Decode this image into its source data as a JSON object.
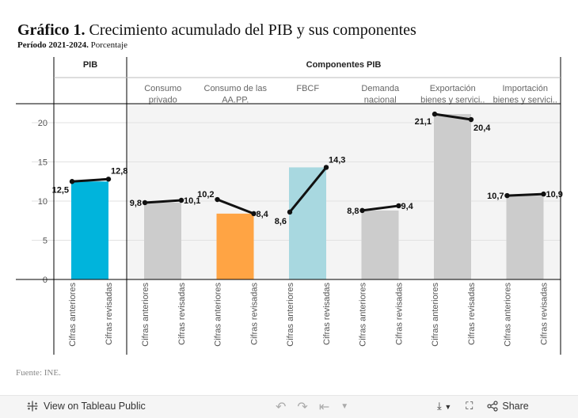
{
  "header": {
    "title_bold": "Gráfico 1.",
    "title_rest": "Crecimiento acumulado del PIB y sus componentes",
    "subtitle_bold": "Período 2021-2024.",
    "subtitle_rest": "Porcentaje"
  },
  "source": "Fuente: INE.",
  "footer": {
    "view_label": "View on Tableau Public",
    "share_label": "Share"
  },
  "colors": {
    "pib": "#00b4dc",
    "grey": "#cccccc",
    "orange": "#ffa444",
    "lightblue": "#a8d8e0",
    "panel_bg": "#f4f4f4",
    "line": "#111111"
  },
  "chart_data": {
    "type": "bar",
    "title": "Crecimiento acumulado del PIB y sus componentes",
    "ylabel": "Porcentaje",
    "ylim": [
      0,
      22
    ],
    "yticks": [
      0,
      5,
      10,
      15,
      20
    ],
    "section_labels": [
      "PIB",
      "Componentes PIB"
    ],
    "categories": [
      "Cifras anteriores",
      "Cifras revisadas"
    ],
    "groups": [
      {
        "name": "",
        "section": "PIB",
        "color_key": "pib",
        "bar_value": 12.5,
        "values": [
          12.5,
          12.8
        ],
        "labels": [
          "12,5",
          "12,8"
        ]
      },
      {
        "name": "Consumo\nprivado",
        "section": "Componentes PIB",
        "color_key": "grey",
        "bar_value": 9.8,
        "values": [
          9.8,
          10.1
        ],
        "labels": [
          "9,8",
          "10,1"
        ]
      },
      {
        "name": "Consumo de las\nAA.PP.",
        "section": "Componentes PIB",
        "color_key": "orange",
        "bar_value": 8.4,
        "values": [
          10.2,
          8.4
        ],
        "labels": [
          "10,2",
          "8,4"
        ]
      },
      {
        "name": "FBCF",
        "section": "Componentes PIB",
        "color_key": "lightblue",
        "bar_value": 14.3,
        "values": [
          8.6,
          14.3
        ],
        "labels": [
          "8,6",
          "14,3"
        ]
      },
      {
        "name": "Demanda\nnacional",
        "section": "Componentes PIB",
        "color_key": "grey",
        "bar_value": 8.8,
        "values": [
          8.8,
          9.4
        ],
        "labels": [
          "8,8",
          "9,4"
        ]
      },
      {
        "name": "Exportación\nbienes y servici..",
        "section": "Componentes PIB",
        "color_key": "grey",
        "bar_value": 21.1,
        "values": [
          21.1,
          20.4
        ],
        "labels": [
          "21,1",
          "20,4"
        ]
      },
      {
        "name": "Importación\nbienes y servici..",
        "section": "Componentes PIB",
        "color_key": "grey",
        "bar_value": 10.7,
        "values": [
          10.7,
          10.9
        ],
        "labels": [
          "10,7",
          "10,9"
        ]
      }
    ]
  }
}
